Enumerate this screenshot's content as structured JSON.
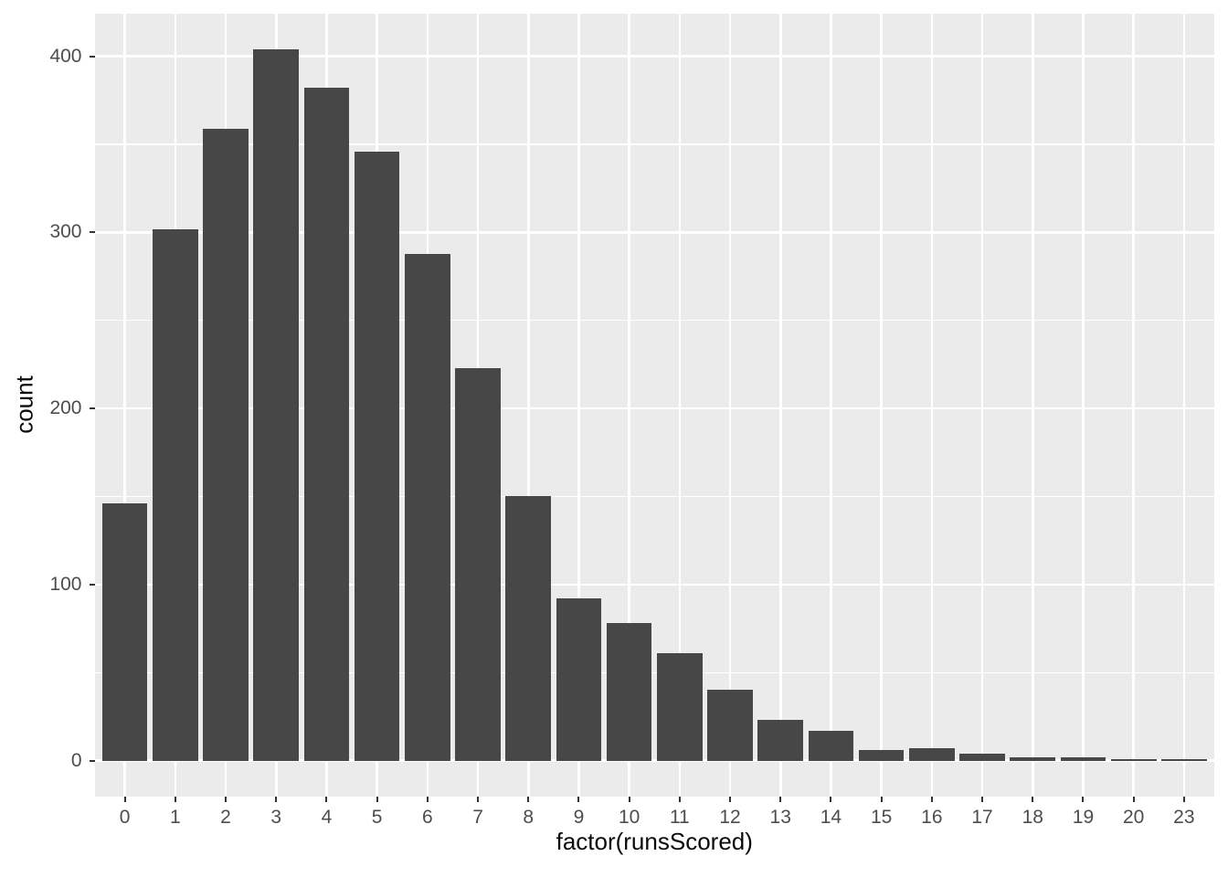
{
  "chart_data": {
    "type": "bar",
    "title": "",
    "xlabel": "factor(runsScored)",
    "ylabel": "count",
    "categories": [
      "0",
      "1",
      "2",
      "3",
      "4",
      "5",
      "6",
      "7",
      "8",
      "9",
      "10",
      "11",
      "12",
      "13",
      "14",
      "15",
      "16",
      "17",
      "18",
      "19",
      "20",
      "23"
    ],
    "values": [
      146,
      302,
      359,
      404,
      382,
      346,
      288,
      223,
      150,
      92,
      78,
      61,
      40,
      23,
      17,
      6,
      7,
      4,
      2,
      2,
      1,
      1
    ],
    "y_major_ticks": [
      0,
      100,
      200,
      300,
      400
    ],
    "y_minor_ticks": [
      50,
      150,
      250,
      350
    ],
    "ylim": [
      0,
      424
    ],
    "grid": "on",
    "legend": "none"
  },
  "style": {
    "bar_color": "#474747",
    "panel_bg": "#ebebeb",
    "grid_color": "#ffffff",
    "axis_text_color": "#4d4d4d",
    "axis_title_color": "#0a0a0a",
    "tick_color": "#333333",
    "page_bg": "#ffffff"
  }
}
